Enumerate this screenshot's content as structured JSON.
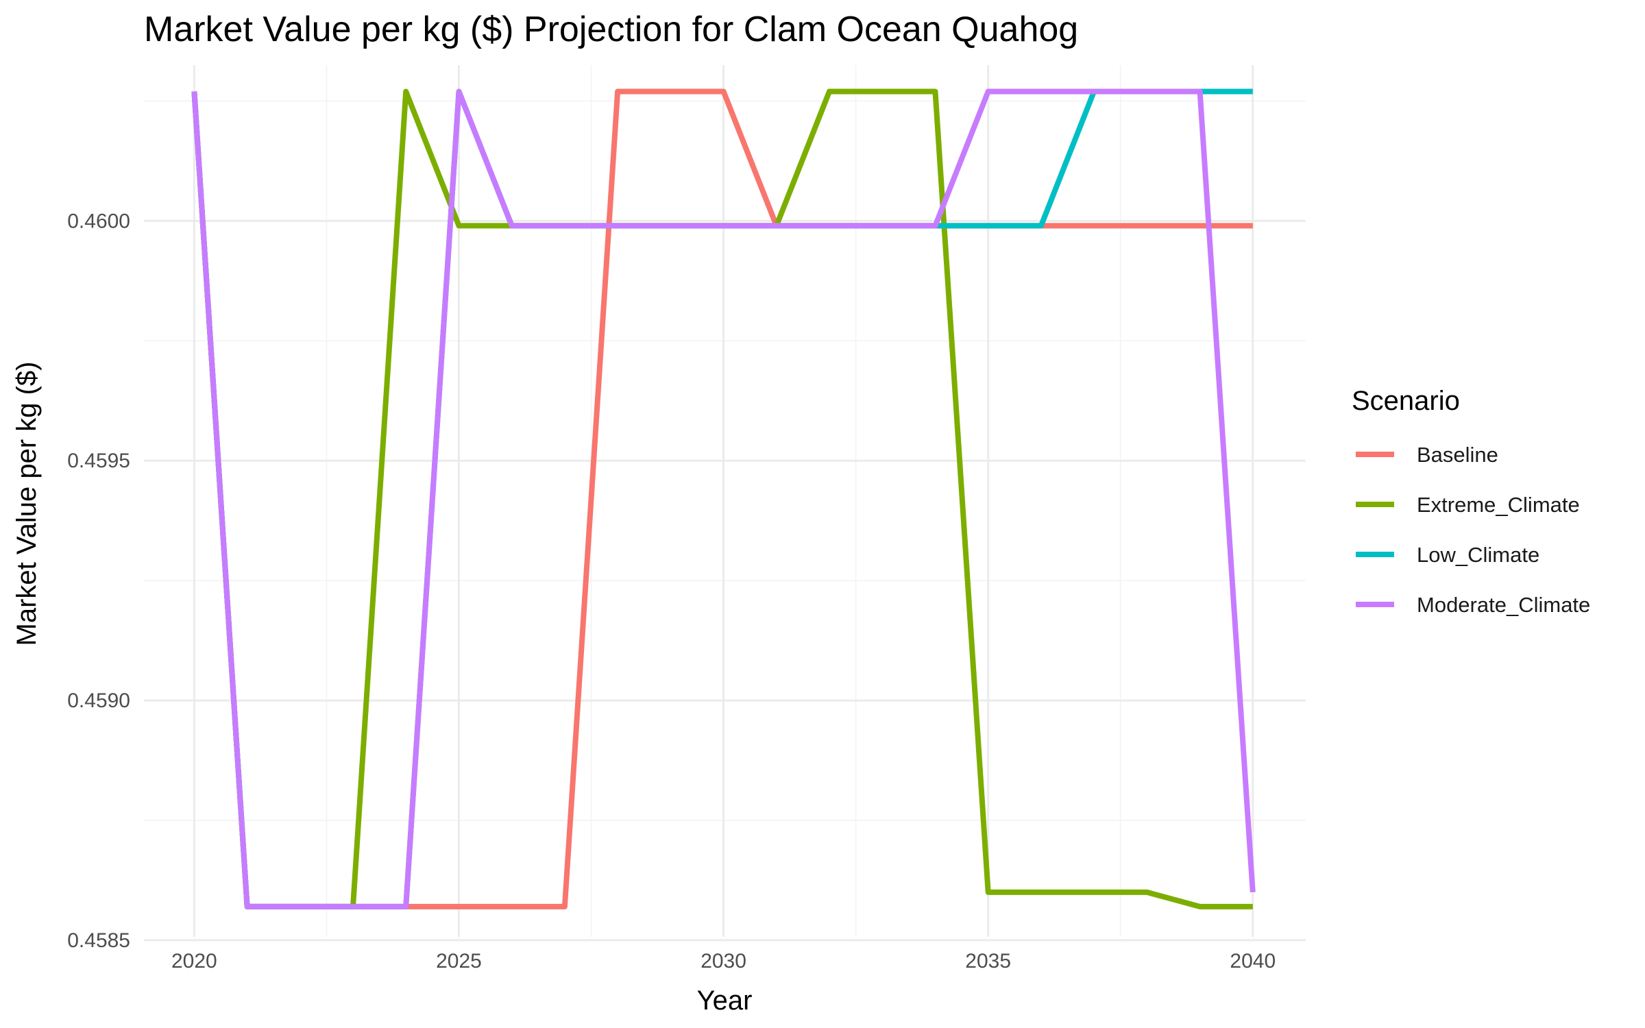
{
  "chart_data": {
    "type": "line",
    "title": "Market Value per kg ($) Projection for Clam Ocean Quahog",
    "xlabel": "Year",
    "ylabel": "Market Value per kg ($)",
    "xlim": [
      2019.05,
      2041.0
    ],
    "ylim": [
      0.458507,
      0.460325
    ],
    "x_ticks": [
      2020,
      2025,
      2030,
      2035,
      2040
    ],
    "y_ticks": [
      0.4585,
      0.459,
      0.4595,
      0.46
    ],
    "y_tick_labels": [
      "0.4585",
      "0.4590",
      "0.4595",
      "0.4600"
    ],
    "grid": true,
    "legend": {
      "title": "Scenario",
      "position": "right"
    },
    "x": [
      2020,
      2021,
      2022,
      2023,
      2024,
      2025,
      2026,
      2027,
      2028,
      2029,
      2030,
      2031,
      2032,
      2033,
      2034,
      2035,
      2036,
      2037,
      2038,
      2039,
      2040
    ],
    "series": [
      {
        "name": "Baseline",
        "color": "#F8766D",
        "values": [
          0.46027,
          0.45857,
          0.45857,
          0.45857,
          0.45857,
          0.45857,
          0.45857,
          0.45857,
          0.46027,
          0.46027,
          0.46027,
          0.45999,
          0.45999,
          0.45999,
          0.45999,
          0.45999,
          0.45999,
          0.45999,
          0.45999,
          0.45999,
          0.45999
        ]
      },
      {
        "name": "Extreme_Climate",
        "color": "#7CAE00",
        "values": [
          0.46027,
          0.45857,
          0.45857,
          0.45857,
          0.46027,
          0.45999,
          0.45999,
          0.45999,
          0.45999,
          0.45999,
          0.45999,
          0.45999,
          0.46027,
          0.46027,
          0.46027,
          0.4586,
          0.4586,
          0.4586,
          0.4586,
          0.45857,
          0.45857
        ]
      },
      {
        "name": "Low_Climate",
        "color": "#00BFC4",
        "values": [
          0.46027,
          0.45857,
          0.45857,
          0.45857,
          0.45857,
          0.46027,
          0.45999,
          0.45999,
          0.45999,
          0.45999,
          0.45999,
          0.45999,
          0.45999,
          0.45999,
          0.45999,
          0.45999,
          0.45999,
          0.46027,
          0.46027,
          0.46027,
          0.46027
        ]
      },
      {
        "name": "Moderate_Climate",
        "color": "#C77CFF",
        "values": [
          0.46027,
          0.45857,
          0.45857,
          0.45857,
          0.45857,
          0.46027,
          0.45999,
          0.45999,
          0.45999,
          0.45999,
          0.45999,
          0.45999,
          0.45999,
          0.45999,
          0.45999,
          0.46027,
          0.46027,
          0.46027,
          0.46027,
          0.46027,
          0.4586
        ]
      }
    ]
  }
}
